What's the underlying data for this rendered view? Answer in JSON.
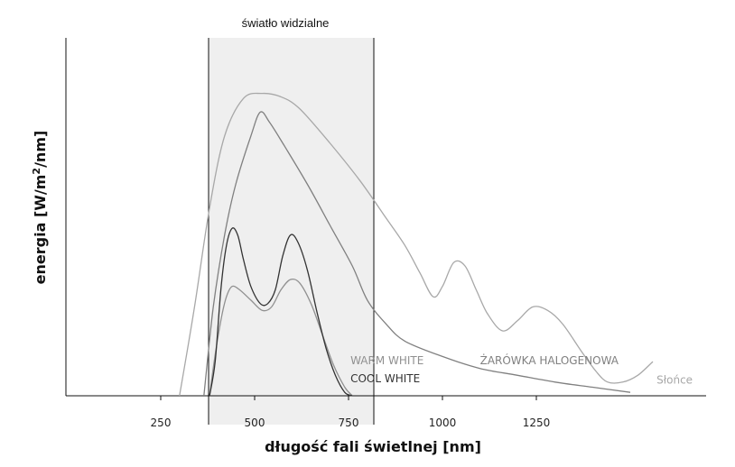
{
  "chart_data": {
    "type": "line",
    "title": "",
    "band": {
      "label": "światło widzialne",
      "from": 380,
      "to": 780
    },
    "xlabel": "długość fali świetlnej [nm]",
    "ylabel_parts": [
      "energia [W/m",
      "2",
      "/nm]"
    ],
    "xlim": [
      0,
      1700
    ],
    "ylim": [
      0,
      1.0
    ],
    "xticks": [
      250,
      500,
      750,
      1000,
      1250
    ],
    "grid": false,
    "series": [
      {
        "name": "Słońce",
        "color": "#a8a8a8",
        "label_at": [
          1570,
          0.035
        ],
        "points": [
          [
            300,
            0
          ],
          [
            340,
            0.26
          ],
          [
            380,
            0.55
          ],
          [
            420,
            0.76
          ],
          [
            470,
            0.87
          ],
          [
            520,
            0.885
          ],
          [
            570,
            0.875
          ],
          [
            620,
            0.84
          ],
          [
            700,
            0.74
          ],
          [
            780,
            0.63
          ],
          [
            850,
            0.52
          ],
          [
            900,
            0.44
          ],
          [
            940,
            0.36
          ],
          [
            975,
            0.29
          ],
          [
            1000,
            0.32
          ],
          [
            1030,
            0.39
          ],
          [
            1060,
            0.38
          ],
          [
            1090,
            0.31
          ],
          [
            1120,
            0.24
          ],
          [
            1160,
            0.19
          ],
          [
            1200,
            0.22
          ],
          [
            1240,
            0.26
          ],
          [
            1280,
            0.25
          ],
          [
            1320,
            0.21
          ],
          [
            1370,
            0.13
          ],
          [
            1410,
            0.07
          ],
          [
            1440,
            0.04
          ],
          [
            1480,
            0.04
          ],
          [
            1520,
            0.06
          ],
          [
            1560,
            0.1
          ]
        ]
      },
      {
        "name": "ŻARÓWKA HALOGENOWA",
        "color": "#808080",
        "label_at": [
          1100,
          0.092
        ],
        "points": [
          [
            365,
            0
          ],
          [
            390,
            0.26
          ],
          [
            420,
            0.47
          ],
          [
            450,
            0.62
          ],
          [
            490,
            0.76
          ],
          [
            515,
            0.83
          ],
          [
            540,
            0.8
          ],
          [
            580,
            0.73
          ],
          [
            640,
            0.62
          ],
          [
            700,
            0.5
          ],
          [
            760,
            0.38
          ],
          [
            800,
            0.28
          ],
          [
            850,
            0.21
          ],
          [
            900,
            0.16
          ],
          [
            1000,
            0.115
          ],
          [
            1100,
            0.08
          ],
          [
            1200,
            0.06
          ],
          [
            1300,
            0.04
          ],
          [
            1400,
            0.025
          ],
          [
            1500,
            0.01
          ]
        ]
      },
      {
        "name": "WARM WHITE",
        "color": "#909090",
        "label_at": [
          755,
          0.092
        ],
        "points": [
          [
            380,
            0
          ],
          [
            395,
            0.12
          ],
          [
            410,
            0.22
          ],
          [
            425,
            0.29
          ],
          [
            440,
            0.32
          ],
          [
            460,
            0.31
          ],
          [
            490,
            0.28
          ],
          [
            520,
            0.25
          ],
          [
            545,
            0.26
          ],
          [
            570,
            0.31
          ],
          [
            595,
            0.34
          ],
          [
            620,
            0.33
          ],
          [
            650,
            0.27
          ],
          [
            680,
            0.18
          ],
          [
            710,
            0.09
          ],
          [
            740,
            0.025
          ],
          [
            760,
            0
          ]
        ]
      },
      {
        "name": "COOL WHITE",
        "color": "#333333",
        "label_at": [
          755,
          0.04
        ],
        "points": [
          [
            380,
            0
          ],
          [
            395,
            0.1
          ],
          [
            410,
            0.31
          ],
          [
            425,
            0.44
          ],
          [
            440,
            0.49
          ],
          [
            455,
            0.47
          ],
          [
            470,
            0.4
          ],
          [
            490,
            0.32
          ],
          [
            515,
            0.27
          ],
          [
            535,
            0.27
          ],
          [
            555,
            0.31
          ],
          [
            575,
            0.41
          ],
          [
            595,
            0.47
          ],
          [
            615,
            0.45
          ],
          [
            640,
            0.37
          ],
          [
            665,
            0.25
          ],
          [
            690,
            0.14
          ],
          [
            715,
            0.06
          ],
          [
            740,
            0.01
          ],
          [
            760,
            0
          ]
        ]
      }
    ]
  }
}
